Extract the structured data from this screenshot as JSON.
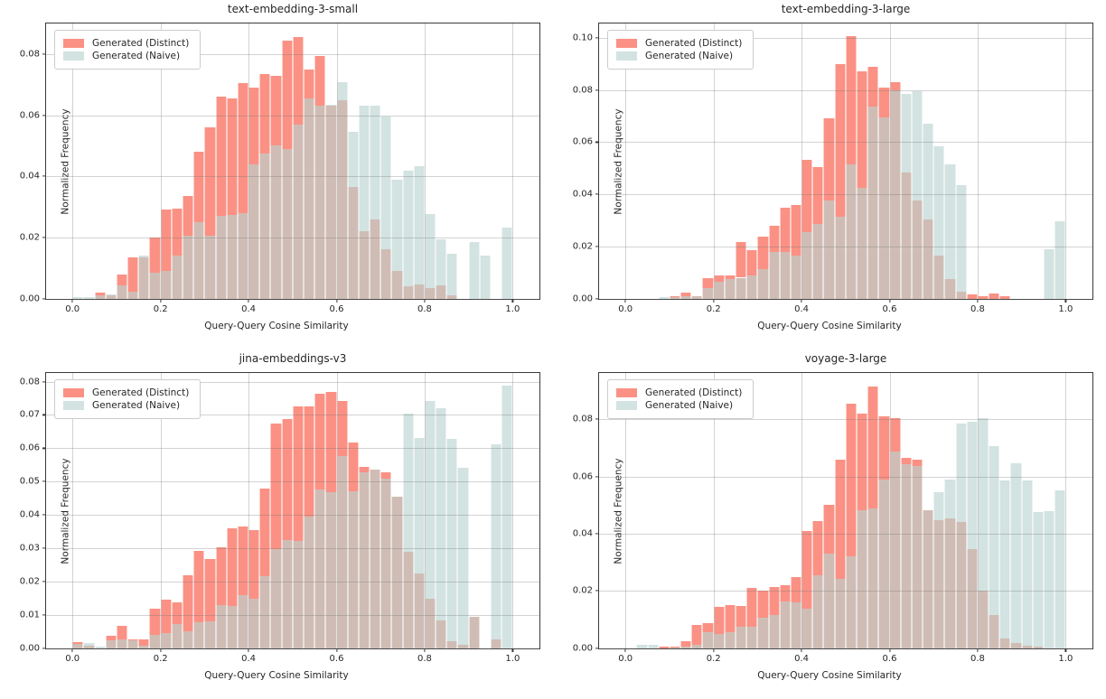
{
  "figure": {
    "xlabel": "Query-Query Cosine Similarity",
    "ylabel": "Normalized Frequency",
    "legend": {
      "distinct_label": "Generated (Distinct)",
      "naive_label": "Generated (Naive)"
    },
    "colors": {
      "distinct": "#FA9184",
      "naive": "#D2E3E1",
      "overlap": "#CFBDB5",
      "grid": "#B0B0B0",
      "spine": "#3A3A3A"
    }
  },
  "chart_data": [
    {
      "type": "bar",
      "subtype": "overlaid-histogram",
      "title": "text-embedding-3-small",
      "xlabel": "Query-Query Cosine Similarity",
      "ylabel": "Normalized Frequency",
      "bin_start": 0.0,
      "bin_width": 0.025,
      "xlim": [
        -0.06,
        1.06
      ],
      "ylim": [
        0,
        0.09
      ],
      "x_ticks": [
        "0.0",
        "0.2",
        "0.4",
        "0.6",
        "0.8",
        "1.0"
      ],
      "x_tick_values": [
        0.0,
        0.2,
        0.4,
        0.6,
        0.8,
        1.0
      ],
      "y_ticks": [
        "0.00",
        "0.02",
        "0.04",
        "0.06",
        "0.08"
      ],
      "y_tick_values": [
        0.0,
        0.02,
        0.04,
        0.06,
        0.08
      ],
      "legend_position": "upper left",
      "grid": true,
      "series": [
        {
          "name": "Generated (Distinct)",
          "values": [
            0,
            0,
            0.002,
            0.001,
            0.008,
            0.0135,
            0.0135,
            0.02,
            0.029,
            0.0295,
            0.0335,
            0.048,
            0.056,
            0.066,
            0.0655,
            0.0705,
            0.069,
            0.0735,
            0.073,
            0.0845,
            0.0855,
            0.075,
            0.0795,
            0.063,
            0.065,
            0.0365,
            0.022,
            0.026,
            0.016,
            0.009,
            0.004,
            0.0045,
            0.0035,
            0.0042,
            0.0012,
            0,
            0,
            0,
            0,
            0
          ]
        },
        {
          "name": "Generated (Naive)",
          "values": [
            0.0005,
            0.0005,
            0.001,
            0.0013,
            0.0042,
            0.0022,
            0.014,
            0.0085,
            0.009,
            0.014,
            0.0205,
            0.025,
            0.0205,
            0.027,
            0.0275,
            0.028,
            0.044,
            0.0475,
            0.05,
            0.049,
            0.057,
            0.0655,
            0.063,
            0.0635,
            0.0708,
            0.0546,
            0.0631,
            0.0631,
            0.0597,
            0.0389,
            0.0418,
            0.0433,
            0.0276,
            0.0195,
            0.0147,
            0,
            0.0186,
            0.0141,
            0,
            0.0231
          ]
        }
      ]
    },
    {
      "type": "bar",
      "subtype": "overlaid-histogram",
      "title": "text-embedding-3-large",
      "xlabel": "Query-Query Cosine Similarity",
      "ylabel": "Normalized Frequency",
      "bin_start": 0.0,
      "bin_width": 0.025,
      "xlim": [
        -0.06,
        1.06
      ],
      "ylim": [
        0,
        0.1055
      ],
      "x_ticks": [
        "0.0",
        "0.2",
        "0.4",
        "0.6",
        "0.8",
        "1.0"
      ],
      "x_tick_values": [
        0.0,
        0.2,
        0.4,
        0.6,
        0.8,
        1.0
      ],
      "y_ticks": [
        "0.00",
        "0.02",
        "0.04",
        "0.06",
        "0.08",
        "0.10"
      ],
      "y_tick_values": [
        0.0,
        0.02,
        0.04,
        0.06,
        0.08,
        0.1
      ],
      "legend_position": "upper left",
      "grid": true,
      "series": [
        {
          "name": "Generated (Distinct)",
          "values": [
            0,
            0,
            0,
            0,
            0.001,
            0.0022,
            0.001,
            0.008,
            0.009,
            0.009,
            0.0217,
            0.0187,
            0.0237,
            0.028,
            0.0347,
            0.036,
            0.0533,
            0.0505,
            0.069,
            0.09,
            0.1005,
            0.087,
            0.089,
            0.081,
            0.083,
            0.0485,
            0.0375,
            0.0305,
            0.0165,
            0.0075,
            0.0026,
            0.0017,
            0.001,
            0.002,
            0.001,
            0,
            0,
            0,
            0,
            0
          ]
        },
        {
          "name": "Generated (Naive)",
          "values": [
            0,
            0,
            0,
            0.0005,
            0.0005,
            0.001,
            0.001,
            0.004,
            0.0065,
            0.0075,
            0.008,
            0.0088,
            0.0113,
            0.0179,
            0.0177,
            0.0166,
            0.0255,
            0.0285,
            0.0377,
            0.0315,
            0.0515,
            0.0425,
            0.0735,
            0.0695,
            0.08,
            0.0785,
            0.0795,
            0.067,
            0.0585,
            0.0515,
            0.0435,
            0,
            0,
            0,
            0,
            0,
            0,
            0,
            0.0188,
            0.0295
          ]
        }
      ]
    },
    {
      "type": "bar",
      "subtype": "overlaid-histogram",
      "title": "jina-embeddings-v3",
      "xlabel": "Query-Query Cosine Similarity",
      "ylabel": "Normalized Frequency",
      "bin_start": 0.0,
      "bin_width": 0.025,
      "xlim": [
        -0.06,
        1.06
      ],
      "ylim": [
        0,
        0.0826
      ],
      "x_ticks": [
        "0.0",
        "0.2",
        "0.4",
        "0.6",
        "0.8",
        "1.0"
      ],
      "x_tick_values": [
        0.0,
        0.2,
        0.4,
        0.6,
        0.8,
        1.0
      ],
      "y_ticks": [
        "0.00",
        "0.01",
        "0.02",
        "0.03",
        "0.04",
        "0.05",
        "0.06",
        "0.07",
        "0.08"
      ],
      "y_tick_values": [
        0.0,
        0.01,
        0.02,
        0.03,
        0.04,
        0.05,
        0.06,
        0.07,
        0.08
      ],
      "legend_position": "upper left",
      "grid": true,
      "series": [
        {
          "name": "Generated (Distinct)",
          "values": [
            0.0018,
            0.0008,
            0,
            0.0036,
            0.0066,
            0.0025,
            0.0027,
            0.0117,
            0.0144,
            0.0138,
            0.0219,
            0.0291,
            0.0268,
            0.0303,
            0.036,
            0.0365,
            0.0355,
            0.0479,
            0.0673,
            0.0687,
            0.0725,
            0.0727,
            0.0763,
            0.0768,
            0.0741,
            0.0617,
            0.0543,
            0.0536,
            0.0528,
            0.0454,
            0.029,
            0.0224,
            0.0149,
            0.0084,
            0.002,
            0.001,
            0.0095,
            0,
            0.0025,
            0
          ]
        },
        {
          "name": "Generated (Naive)",
          "values": [
            0.0013,
            0.0016,
            0.0005,
            0.0023,
            0.0025,
            0.0023,
            0.0007,
            0.0039,
            0.0045,
            0.0072,
            0.005,
            0.0077,
            0.0079,
            0.0129,
            0.0126,
            0.016,
            0.0147,
            0.0215,
            0.0298,
            0.0323,
            0.0322,
            0.0395,
            0.0477,
            0.0468,
            0.0576,
            0.047,
            0.0529,
            0.0536,
            0.051,
            0.0454,
            0.0705,
            0.0632,
            0.0741,
            0.072,
            0.0627,
            0.054,
            0.0095,
            0,
            0.0613,
            0.0787
          ]
        }
      ]
    },
    {
      "type": "bar",
      "subtype": "overlaid-histogram",
      "title": "voyage-3-large",
      "xlabel": "Query-Query Cosine Similarity",
      "ylabel": "Normalized Frequency",
      "bin_start": 0.0,
      "bin_width": 0.025,
      "xlim": [
        -0.06,
        1.06
      ],
      "ylim": [
        0,
        0.0962
      ],
      "x_ticks": [
        "0.0",
        "0.2",
        "0.4",
        "0.6",
        "0.8",
        "1.0"
      ],
      "x_tick_values": [
        0.0,
        0.2,
        0.4,
        0.6,
        0.8,
        1.0
      ],
      "y_ticks": [
        "0.00",
        "0.02",
        "0.04",
        "0.06",
        "0.08"
      ],
      "y_tick_values": [
        0.0,
        0.02,
        0.04,
        0.06,
        0.08
      ],
      "legend_position": "upper left",
      "grid": true,
      "series": [
        {
          "name": "Generated (Distinct)",
          "values": [
            0,
            0,
            0,
            0.0004,
            0.0006,
            0.0024,
            0.008,
            0.0088,
            0.0143,
            0.015,
            0.0147,
            0.0209,
            0.02,
            0.0212,
            0.022,
            0.0248,
            0.0408,
            0.0443,
            0.05,
            0.0659,
            0.0854,
            0.082,
            0.0916,
            0.0809,
            0.0805,
            0.0665,
            0.0659,
            0.0482,
            0.0448,
            0.0455,
            0.0441,
            0.0345,
            0.02,
            0.0117,
            0.0032,
            0.0019,
            0.0008,
            0.0005,
            0,
            0
          ]
        },
        {
          "name": "Generated (Naive)",
          "values": [
            0,
            0.001,
            0.001,
            0,
            0.0004,
            0.0006,
            0.001,
            0.0055,
            0.005,
            0.0057,
            0.0076,
            0.0074,
            0.0106,
            0.0116,
            0.0163,
            0.016,
            0.0138,
            0.0254,
            0.033,
            0.0241,
            0.0321,
            0.0481,
            0.0489,
            0.059,
            0.0688,
            0.0644,
            0.0637,
            0.0482,
            0.0545,
            0.059,
            0.0785,
            0.079,
            0.0805,
            0.0705,
            0.0585,
            0.0645,
            0.0585,
            0.0475,
            0.048,
            0.055
          ]
        }
      ]
    }
  ]
}
